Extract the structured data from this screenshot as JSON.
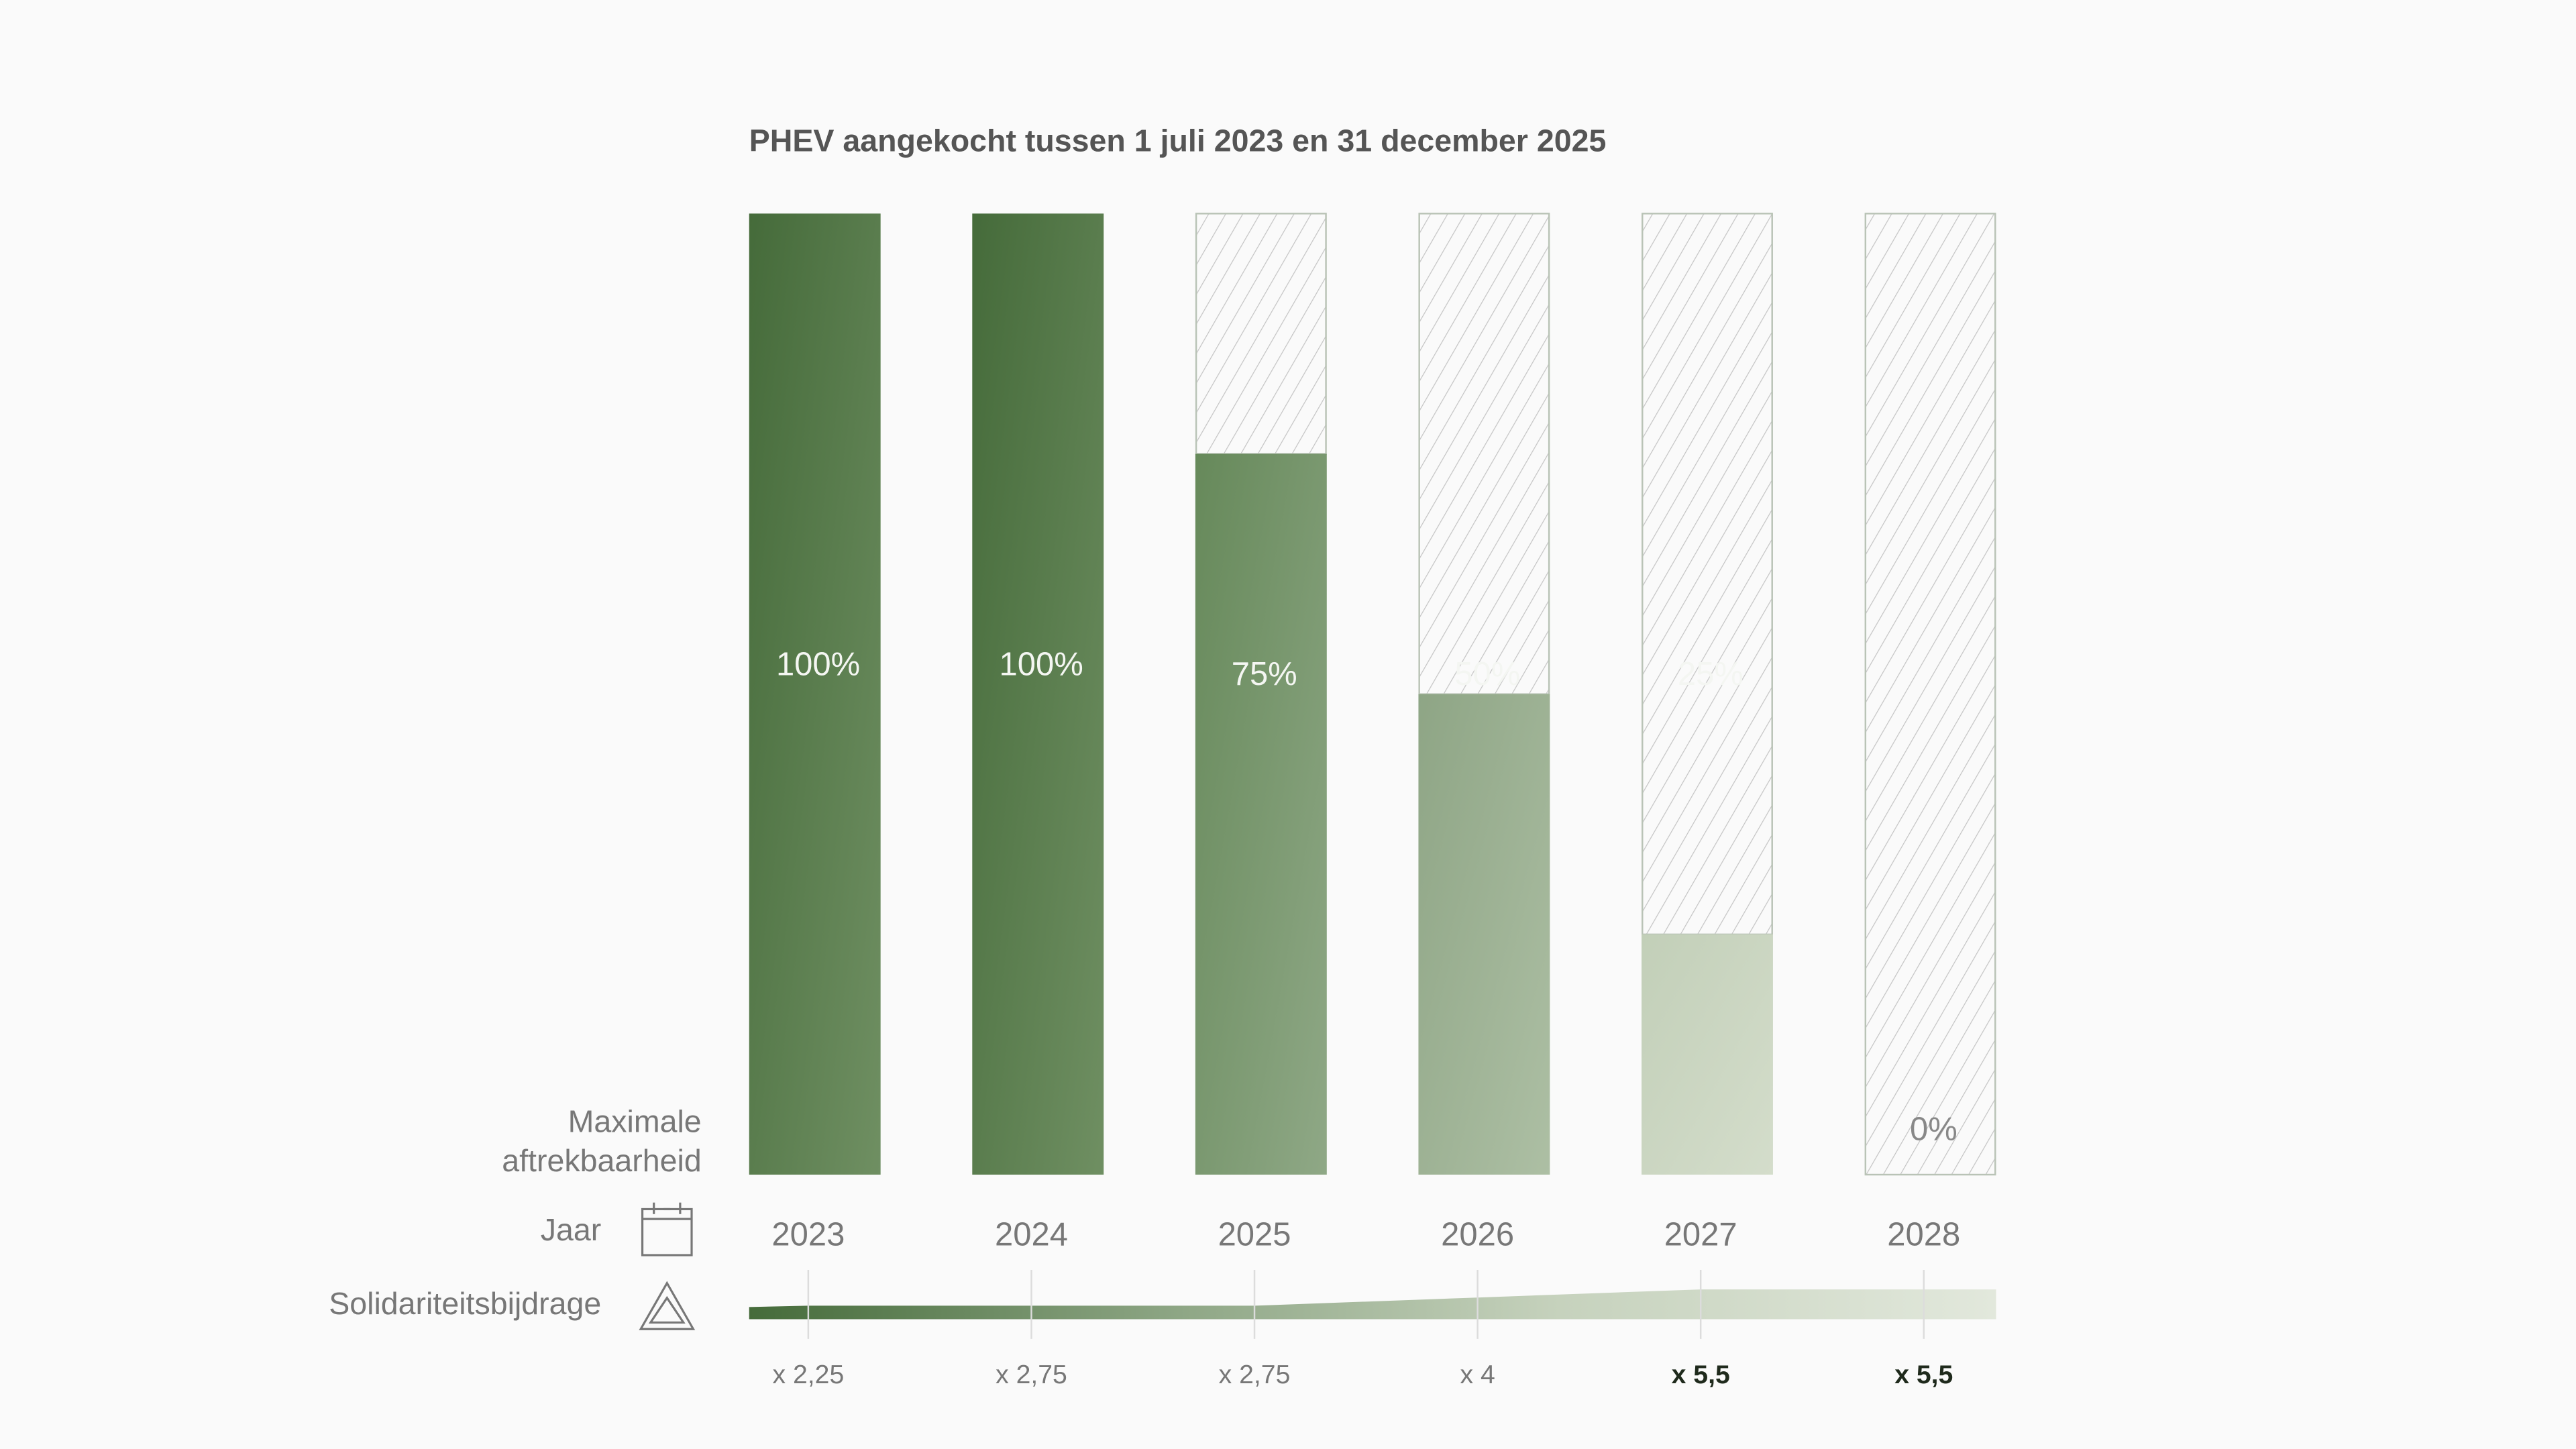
{
  "chart_data": {
    "type": "bar",
    "title": "PHEV aangekocht tussen 1 juli 2023 en 31 december 2025",
    "categories": [
      "2023",
      "2024",
      "2025",
      "2026",
      "2027",
      "2028"
    ],
    "series": [
      {
        "name": "Maximale aftrekbaarheid",
        "values": [
          100,
          100,
          75,
          50,
          25,
          0
        ],
        "labels": [
          "100%",
          "100%",
          "75%",
          "50%",
          "25%",
          "0%"
        ]
      }
    ],
    "ylim": [
      0,
      100
    ],
    "grid": false,
    "solidarity": {
      "label": "Solidariteitsbijdrage",
      "multipliers": [
        2.25,
        2.75,
        2.75,
        4,
        5.5,
        5.5
      ],
      "labels": [
        "x 2,25",
        "x 2,75",
        "x 2,75",
        "x 4",
        "x 5,5",
        "x 5,5"
      ],
      "bold": [
        false,
        false,
        false,
        false,
        true,
        true
      ]
    },
    "row_labels": {
      "deductibility": [
        "Maximale",
        "aftrekbaarheid"
      ],
      "year": "Jaar",
      "solidarity": "Solidariteitsbijdrage"
    },
    "icons": {
      "year": "calendar-icon",
      "solidarity": "warning-triangle-icon"
    },
    "colors": {
      "dark_green": "#456b3a",
      "light_green": "#dfe6d9",
      "hatch": "#c4c4c4",
      "text": "#777777"
    }
  }
}
